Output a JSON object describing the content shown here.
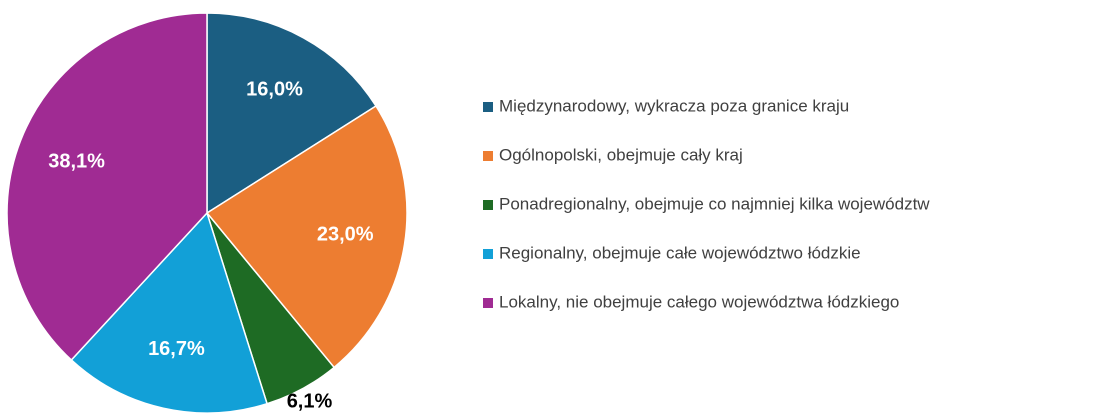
{
  "chart_data": {
    "type": "pie",
    "categories": [
      "Międzynarodowy, wykracza poza granice kraju",
      "Ogólnopolski, obejmuje cały kraj",
      "Ponadregionalny, obejmuje co najmniej kilka województw",
      "Regionalny, obejmuje całe województwo łódzkie",
      "Lokalny, nie obejmuje całego województwa łódzkiego"
    ],
    "values": [
      16.0,
      23.0,
      6.1,
      16.7,
      38.1
    ],
    "value_labels": [
      "16,0%",
      "23,0%",
      "6,1%",
      "16,7%",
      "38,1%"
    ],
    "colors": [
      "#1b5e82",
      "#ed7d31",
      "#1e6b24",
      "#12a0d7",
      "#a02b93"
    ],
    "legend": "right"
  }
}
